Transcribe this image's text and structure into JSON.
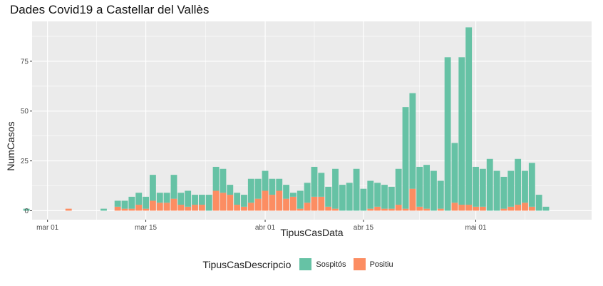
{
  "chart_data": {
    "type": "bar",
    "stacked": true,
    "title": "Dades Covid19 a Castellar del Vallès",
    "xlabel": "TipusCasData",
    "ylabel": "NumCasos",
    "ylim": [
      -4.5,
      95
    ],
    "yticks": [
      0,
      25,
      50,
      75
    ],
    "xticks": [
      {
        "label": "mar 01",
        "day": 0
      },
      {
        "label": "mar 15",
        "day": 14
      },
      {
        "label": "abr 01",
        "day": 31
      },
      {
        "label": "abr 15",
        "day": 45
      },
      {
        "label": "mai 01",
        "day": 61
      }
    ],
    "x_start_date": "2020-02-26",
    "legend": {
      "title": "TipusCasDescripcio",
      "position": "bottom",
      "entries": [
        {
          "name": "Sospitós",
          "color": "#66c2a5"
        },
        {
          "name": "Positiu",
          "color": "#fc8d62"
        }
      ]
    },
    "series": [
      {
        "name": "Sospitós",
        "color": "#66c2a5",
        "values": [
          1,
          0,
          0,
          0,
          0,
          0,
          0,
          0,
          0,
          0,
          0,
          1,
          0,
          3,
          4,
          6,
          6,
          6,
          13,
          5,
          5,
          12,
          6,
          8,
          5,
          5,
          8,
          12,
          12,
          5,
          6,
          6,
          12,
          10,
          10,
          8,
          6,
          7,
          2,
          9,
          10,
          15,
          12,
          10,
          20,
          13,
          14,
          21,
          11,
          14,
          12,
          12,
          11,
          18,
          51,
          48,
          20,
          22,
          20,
          14,
          77,
          30,
          74,
          89,
          20,
          19,
          26,
          20,
          16,
          18,
          23,
          16,
          22,
          8,
          2
        ]
      },
      {
        "name": "Positiu",
        "color": "#fc8d62",
        "values": [
          0,
          0,
          0,
          0,
          0,
          0,
          1,
          0,
          0,
          0,
          0,
          0,
          0,
          2,
          1,
          1,
          3,
          1,
          5,
          4,
          4,
          6,
          3,
          2,
          3,
          3,
          0,
          10,
          9,
          8,
          3,
          2,
          4,
          6,
          10,
          8,
          10,
          6,
          7,
          1,
          4,
          7,
          7,
          2,
          1,
          0,
          0,
          0,
          0,
          1,
          2,
          1,
          1,
          3,
          1,
          11,
          2,
          1,
          0,
          1,
          0,
          4,
          3,
          3,
          2,
          2,
          0,
          0,
          1,
          2,
          3,
          4,
          2,
          0,
          0
        ]
      }
    ]
  }
}
